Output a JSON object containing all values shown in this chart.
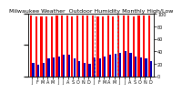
{
  "title": "Milwaukee Weather  Outdoor Humidity Monthly High/Low",
  "months": [
    "J",
    "F",
    "M",
    "A",
    "M",
    "J",
    "J",
    "A",
    "S",
    "O",
    "N",
    "D",
    "J",
    "F",
    "M",
    "A",
    "M",
    "J",
    "J",
    "A",
    "S",
    "O",
    "N",
    "D"
  ],
  "highs": [
    97,
    96,
    96,
    96,
    96,
    97,
    97,
    97,
    96,
    97,
    97,
    97,
    97,
    96,
    96,
    97,
    96,
    97,
    97,
    97,
    96,
    97,
    97,
    97
  ],
  "lows": [
    22,
    18,
    22,
    28,
    30,
    32,
    35,
    34,
    28,
    24,
    22,
    20,
    30,
    28,
    32,
    34,
    36,
    38,
    40,
    38,
    32,
    30,
    28,
    24
  ],
  "high_color": "#ff0000",
  "low_color": "#0000bb",
  "bg_color": "#ffffff",
  "ylim": [
    0,
    100
  ],
  "title_fontsize": 4.5,
  "tick_fontsize": 3.5,
  "dpi": 100
}
